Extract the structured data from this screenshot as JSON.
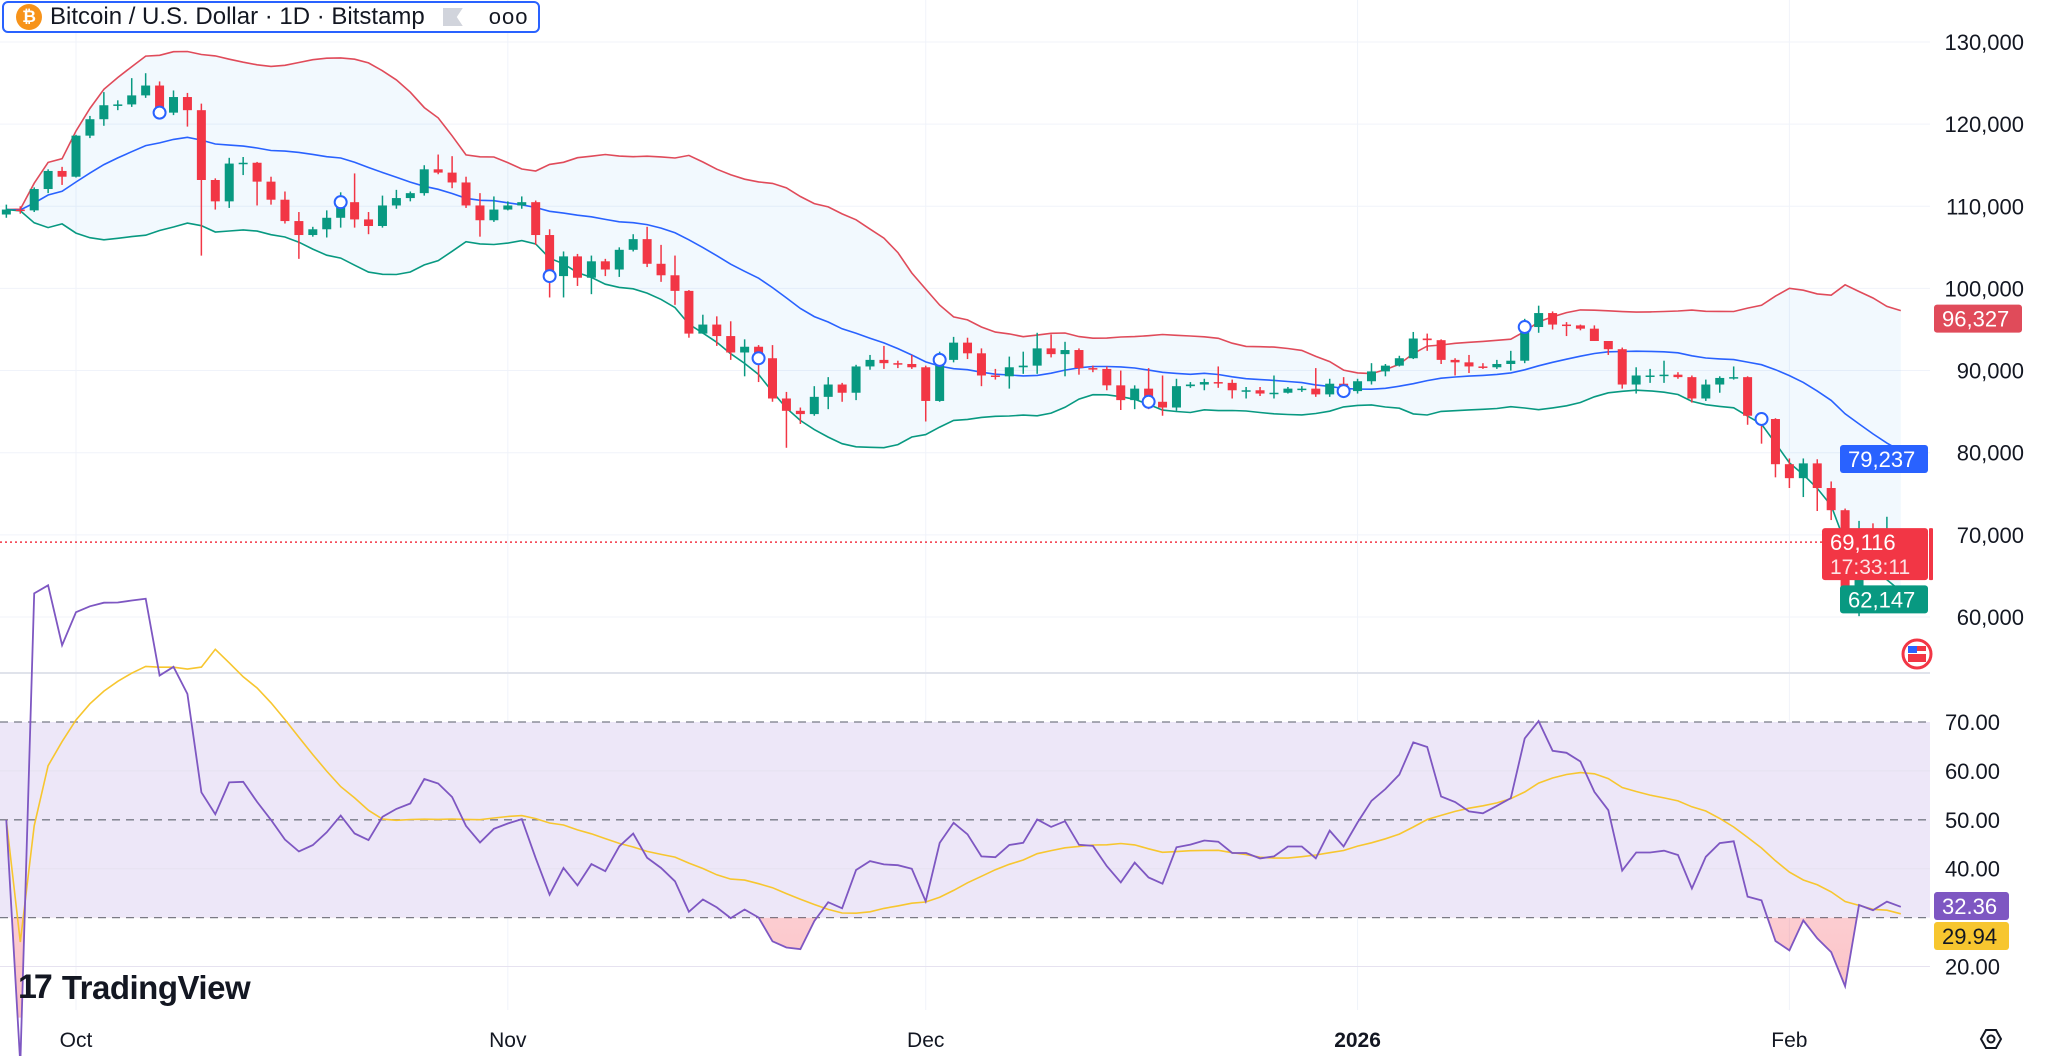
{
  "header": {
    "symbol_icon": "bitcoin-icon",
    "title": "Bitcoin / U.S. Dollar · 1D · Bitstamp",
    "flag_icon": "flag-icon",
    "more_icon": "more-horizontal-icon",
    "more_label": "ooo"
  },
  "branding": {
    "logo_text": "TradingView",
    "logo_mark": "17"
  },
  "colors": {
    "up": "#089981",
    "down": "#f23645",
    "bb_upper": "#e04b5a",
    "bb_basis": "#2962ff",
    "bb_lower": "#089981",
    "bb_fill": "#2196f3",
    "rsi": "#7e57c2",
    "rsi_ma": "#f7c62f",
    "rsi_band": "#ede7f8",
    "grid": "#f0f3fa"
  },
  "chart_data": {
    "type": "candlestick",
    "price_axis": {
      "ticks": [
        "130,000",
        "120,000",
        "110,000",
        "100,000",
        "90,000",
        "80,000",
        "70,000",
        "60,000"
      ],
      "tick_values": [
        130000,
        120000,
        110000,
        100000,
        90000,
        80000,
        70000,
        60000
      ],
      "ylim": [
        55000,
        135000
      ]
    },
    "time_axis": {
      "ticks": [
        {
          "label": "Oct",
          "date": "2025-10-01",
          "bold": false
        },
        {
          "label": "Nov",
          "date": "2025-11-01",
          "bold": false
        },
        {
          "label": "Dec",
          "date": "2025-12-01",
          "bold": false
        },
        {
          "label": "2026",
          "date": "2026-01-01",
          "bold": true
        },
        {
          "label": "Feb",
          "date": "2026-02-01",
          "bold": false
        }
      ]
    },
    "candles_by_month": [
      {
        "month": "2025-09",
        "first_day": 26,
        "ohlc": [
          [
            109000,
            110200,
            108600,
            109600
          ],
          [
            109600,
            110000,
            109100,
            109500
          ],
          [
            109500,
            112300,
            109300,
            112100
          ],
          [
            112100,
            114500,
            111600,
            114300
          ],
          [
            114300,
            114800,
            112600,
            113600
          ]
        ]
      },
      {
        "month": "2025-10",
        "first_day": 1,
        "ohlc": [
          [
            113600,
            118700,
            113500,
            118600
          ],
          [
            118600,
            121000,
            118300,
            120600
          ],
          [
            120600,
            123900,
            119800,
            122300
          ],
          [
            122300,
            122900,
            121700,
            122400
          ],
          [
            122400,
            125600,
            122100,
            123500
          ],
          [
            123500,
            126200,
            123200,
            124700
          ],
          [
            124700,
            125200,
            120600,
            121400
          ],
          [
            121400,
            124100,
            121100,
            123300
          ],
          [
            123300,
            123800,
            119700,
            121700
          ],
          [
            121700,
            122500,
            104000,
            113200
          ],
          [
            113200,
            113400,
            109600,
            110600
          ],
          [
            110600,
            115900,
            109800,
            115200
          ],
          [
            115200,
            116000,
            113800,
            115300
          ],
          [
            115300,
            115400,
            110100,
            113000
          ],
          [
            113000,
            113600,
            110200,
            110800
          ],
          [
            110800,
            111800,
            107900,
            108200
          ],
          [
            108200,
            109300,
            103600,
            106500
          ],
          [
            106500,
            107500,
            106300,
            107200
          ],
          [
            107200,
            109500,
            106200,
            108600
          ],
          [
            108600,
            111700,
            107400,
            110500
          ],
          [
            110500,
            114000,
            107400,
            108400
          ],
          [
            108400,
            109300,
            106600,
            107600
          ],
          [
            107600,
            111300,
            107400,
            110100
          ],
          [
            110100,
            112000,
            109700,
            111000
          ],
          [
            111000,
            111800,
            110600,
            111600
          ],
          [
            111600,
            115000,
            111300,
            114500
          ],
          [
            114500,
            116300,
            113900,
            114100
          ],
          [
            114100,
            116100,
            112200,
            112900
          ],
          [
            112900,
            113600,
            109800,
            110100
          ],
          [
            110100,
            111600,
            106300,
            108300
          ],
          [
            108300,
            111200,
            108100,
            109600
          ]
        ]
      },
      {
        "month": "2025-11",
        "first_day": 1,
        "ohlc": [
          [
            109600,
            110600,
            109500,
            110100
          ],
          [
            110100,
            111200,
            109700,
            110500
          ],
          [
            110500,
            110700,
            105300,
            106500
          ],
          [
            106500,
            107200,
            98900,
            101500
          ],
          [
            101500,
            104500,
            98900,
            103900
          ],
          [
            103900,
            104200,
            100300,
            101300
          ],
          [
            101300,
            104000,
            99300,
            103300
          ],
          [
            103300,
            103600,
            101500,
            102300
          ],
          [
            102300,
            105000,
            101400,
            104700
          ],
          [
            104700,
            106600,
            104500,
            106000
          ],
          [
            106000,
            107500,
            102600,
            103000
          ],
          [
            103000,
            105300,
            100800,
            101600
          ],
          [
            101600,
            104000,
            98000,
            99700
          ],
          [
            99700,
            99800,
            94000,
            94500
          ],
          [
            94500,
            96800,
            94500,
            95600
          ],
          [
            95600,
            96600,
            93000,
            94200
          ],
          [
            94200,
            96000,
            91300,
            92200
          ],
          [
            92200,
            93800,
            89300,
            92900
          ],
          [
            92900,
            93100,
            88600,
            91500
          ],
          [
            91500,
            93100,
            86200,
            86600
          ],
          [
            86600,
            87400,
            80600,
            85100
          ],
          [
            85100,
            85500,
            83500,
            84700
          ],
          [
            84700,
            88100,
            84500,
            86800
          ],
          [
            86800,
            89200,
            85300,
            88300
          ],
          [
            88300,
            88500,
            86200,
            87300
          ],
          [
            87300,
            90700,
            86400,
            90500
          ],
          [
            90500,
            91900,
            90100,
            91300
          ],
          [
            91300,
            93000,
            90200,
            90900
          ],
          [
            90900,
            91200,
            90300,
            90800
          ],
          [
            90800,
            91900,
            90200,
            90400
          ]
        ]
      },
      {
        "month": "2025-12",
        "first_day": 1,
        "ohlc": [
          [
            90400,
            90600,
            83800,
            86300
          ],
          [
            86300,
            92300,
            86200,
            91300
          ],
          [
            91300,
            94100,
            91000,
            93400
          ],
          [
            93400,
            94000,
            91400,
            92100
          ],
          [
            92100,
            92700,
            88100,
            89400
          ],
          [
            89400,
            90200,
            88900,
            89300
          ],
          [
            89300,
            91700,
            87800,
            90400
          ],
          [
            90400,
            92300,
            89600,
            90600
          ],
          [
            90600,
            94600,
            89600,
            92700
          ],
          [
            92700,
            94400,
            91600,
            92000
          ],
          [
            92000,
            93500,
            89300,
            92500
          ],
          [
            92500,
            92700,
            89500,
            90300
          ],
          [
            90300,
            90600,
            89800,
            90200
          ],
          [
            90200,
            90500,
            87600,
            88200
          ],
          [
            88200,
            90000,
            85200,
            86400
          ],
          [
            86400,
            88200,
            85300,
            87800
          ],
          [
            87800,
            90300,
            85300,
            86200
          ],
          [
            86200,
            89400,
            84500,
            85500
          ],
          [
            85500,
            89000,
            85100,
            88100
          ],
          [
            88100,
            88600,
            87900,
            88300
          ],
          [
            88300,
            89000,
            87600,
            88600
          ],
          [
            88600,
            90500,
            87900,
            88500
          ],
          [
            88500,
            88900,
            86600,
            87600
          ],
          [
            87600,
            88000,
            86600,
            87600
          ],
          [
            87600,
            88000,
            86900,
            87200
          ],
          [
            87200,
            89400,
            86600,
            87300
          ],
          [
            87300,
            88000,
            87200,
            87800
          ],
          [
            87800,
            88100,
            87400,
            87800
          ],
          [
            87800,
            90300,
            86800,
            87100
          ],
          [
            87100,
            89000,
            86800,
            88400
          ],
          [
            88400,
            89200,
            87100,
            87500
          ]
        ]
      },
      {
        "month": "2026-01",
        "first_day": 1,
        "ohlc": [
          [
            87500,
            89000,
            87200,
            88700
          ],
          [
            88700,
            90900,
            88300,
            89900
          ],
          [
            89900,
            90800,
            89300,
            90600
          ],
          [
            90600,
            91800,
            90500,
            91500
          ],
          [
            91500,
            94700,
            91400,
            93900
          ],
          [
            93900,
            94500,
            92400,
            93700
          ],
          [
            93700,
            93800,
            90800,
            91300
          ],
          [
            91300,
            91500,
            89400,
            91000
          ],
          [
            91000,
            91900,
            89700,
            90500
          ],
          [
            90500,
            90900,
            90200,
            90400
          ],
          [
            90400,
            91300,
            90200,
            90800
          ],
          [
            90800,
            92400,
            90000,
            91200
          ],
          [
            91200,
            96300,
            90900,
            95300
          ],
          [
            95300,
            97900,
            94600,
            97000
          ],
          [
            97000,
            97200,
            95000,
            95600
          ],
          [
            95600,
            95900,
            94200,
            95500
          ],
          [
            95500,
            95600,
            94900,
            95100
          ],
          [
            95100,
            95500,
            93600,
            93600
          ],
          [
            93600,
            93600,
            91900,
            92600
          ],
          [
            92600,
            92800,
            87800,
            88300
          ],
          [
            88300,
            90400,
            87200,
            89400
          ],
          [
            89400,
            90200,
            88500,
            89400
          ],
          [
            89400,
            91200,
            88500,
            89500
          ],
          [
            89500,
            89800,
            89000,
            89200
          ],
          [
            89200,
            89400,
            86100,
            86600
          ],
          [
            86600,
            88900,
            86300,
            88300
          ],
          [
            88300,
            89300,
            87300,
            89100
          ],
          [
            89100,
            90500,
            88900,
            89200
          ],
          [
            89200,
            89300,
            83400,
            84500
          ],
          [
            84500,
            84700,
            81100,
            84100
          ],
          [
            84100,
            84200,
            77000,
            78600
          ]
        ]
      },
      {
        "month": "2026-02",
        "first_day": 1,
        "ohlc": [
          [
            78600,
            79300,
            75700,
            76900
          ],
          [
            76900,
            79300,
            74600,
            78700
          ],
          [
            78700,
            79200,
            72900,
            75700
          ],
          [
            75700,
            76500,
            71800,
            73000
          ],
          [
            73000,
            73200,
            62400,
            62900
          ],
          [
            62900,
            71700,
            60100,
            70500
          ],
          [
            70500,
            71400,
            67400,
            69300
          ],
          [
            69300,
            72200,
            68700,
            70200
          ],
          [
            70200,
            70600,
            67800,
            69116
          ]
        ]
      }
    ],
    "bollinger": {
      "period": 20,
      "stddev": 2,
      "last_upper": "96,327",
      "last_basis": "79,237",
      "last_lower": "62,147",
      "last_upper_value": 96327,
      "last_basis_value": 79237,
      "last_lower_value": 62147
    },
    "last_price": {
      "value": 69116,
      "label": "69,116",
      "countdown": "17:33:11"
    },
    "rsi": {
      "period": 14,
      "ma_period": 14,
      "ticks": [
        "70.00",
        "60.00",
        "50.00",
        "40.00",
        "20.00"
      ],
      "tick_values": [
        70,
        60,
        50,
        40,
        20
      ],
      "dashed_levels": [
        70,
        50,
        30
      ],
      "last_rsi": "32.36",
      "last_ma": "29.94",
      "last_rsi_value": 32.36,
      "last_ma_value": 29.94
    }
  },
  "footer": {
    "settings_icon": "settings-hexagon-icon"
  }
}
